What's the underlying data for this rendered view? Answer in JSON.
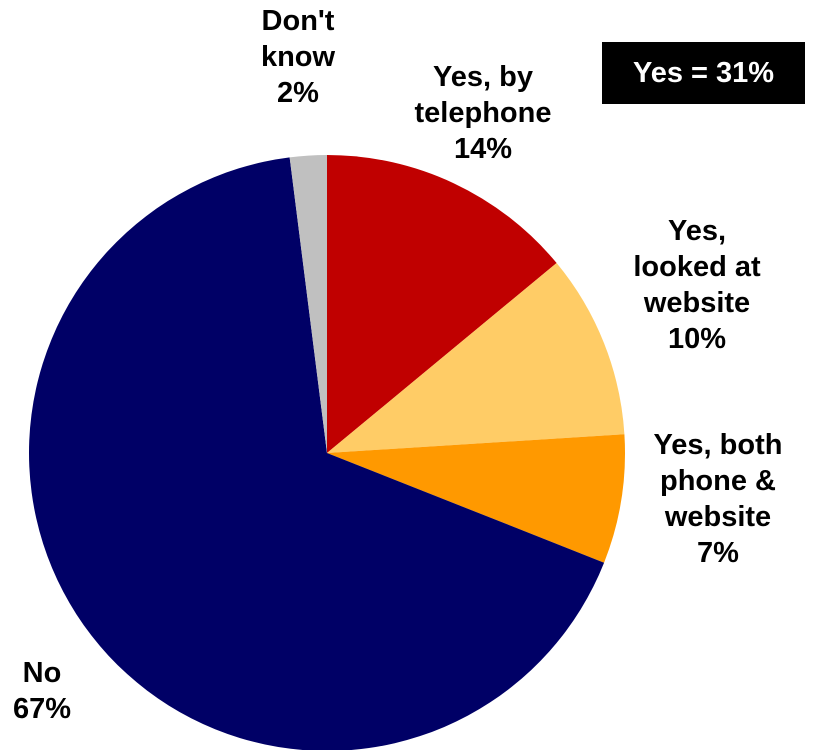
{
  "summary": {
    "text": "Yes = 31%"
  },
  "chart_data": {
    "type": "pie",
    "start_angle_deg": 0,
    "direction": "clockwise",
    "slices": [
      {
        "key": "telephone",
        "label_lines": [
          "Yes, by",
          "telephone",
          "14%"
        ],
        "value": 14,
        "color": "#C00000"
      },
      {
        "key": "website",
        "label_lines": [
          "Yes,",
          "looked at",
          "website",
          "10%"
        ],
        "value": 10,
        "color": "#FFCC66"
      },
      {
        "key": "both",
        "label_lines": [
          "Yes, both",
          "phone &",
          "website",
          "7%"
        ],
        "value": 7,
        "color": "#FF9900"
      },
      {
        "key": "no",
        "label_lines": [
          "No",
          "67%"
        ],
        "value": 67,
        "color": "#000066"
      },
      {
        "key": "dont-know",
        "label_lines": [
          "Don't",
          "know",
          "2%"
        ],
        "value": 2,
        "color": "#C0C0C0"
      }
    ]
  }
}
